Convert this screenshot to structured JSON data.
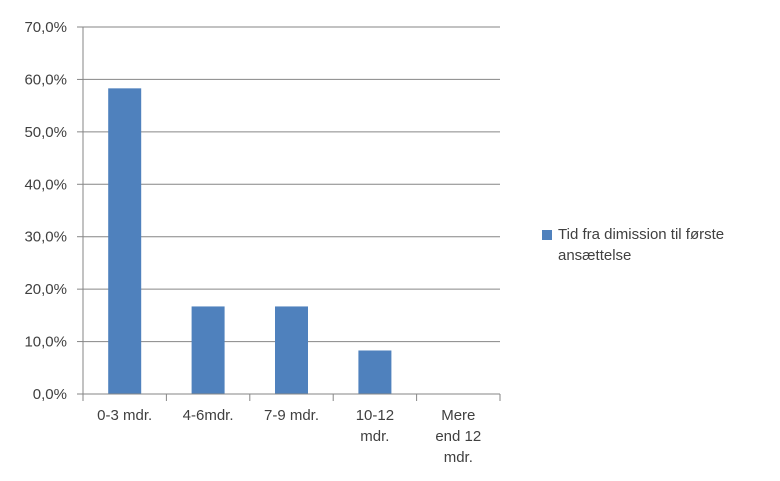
{
  "chart_data": {
    "type": "bar",
    "categories": [
      [
        "0-3 mdr."
      ],
      [
        "4-6mdr."
      ],
      [
        "7-9 mdr."
      ],
      [
        "10-12",
        "mdr."
      ],
      [
        "Mere",
        "end 12",
        "mdr."
      ]
    ],
    "series": [
      {
        "name": "Tid fra dimission til første ansættelse",
        "values": [
          58.3,
          16.7,
          16.7,
          8.3,
          0.0
        ],
        "color": "#4f81bd"
      }
    ],
    "y_ticks": [
      "0,0%",
      "10,0%",
      "20,0%",
      "30,0%",
      "40,0%",
      "50,0%",
      "60,0%",
      "70,0%"
    ],
    "ylim": [
      0,
      70
    ],
    "ytick_step": 10,
    "grid": true,
    "legend_position": "right"
  }
}
